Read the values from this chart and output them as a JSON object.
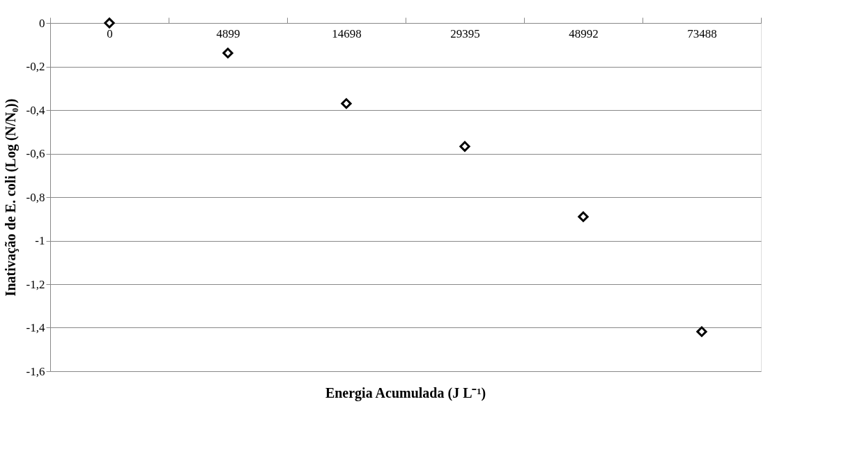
{
  "chart_data": {
    "type": "scatter",
    "xlabel": "Energia Acumulada (J L⁻¹)",
    "ylabel": "Inativação de E. coli (Log (N/N₀))",
    "categories": [
      "0",
      "4899",
      "14698",
      "29395",
      "48992",
      "73488"
    ],
    "series": [
      {
        "color": "#000000",
        "values": [
          0,
          -0.138,
          -0.37,
          -0.567,
          -0.89,
          -1.418
        ]
      }
    ],
    "ylim": [
      -1.6,
      0
    ],
    "yticks": [
      {
        "value": 0,
        "label": "0"
      },
      {
        "value": -0.2,
        "label": "-0,2"
      },
      {
        "value": -0.4,
        "label": "-0,4"
      },
      {
        "value": -0.6,
        "label": "-0,6"
      },
      {
        "value": -0.8,
        "label": "-0,8"
      },
      {
        "value": -1,
        "label": "-1"
      },
      {
        "value": -1.2,
        "label": "-1,2"
      },
      {
        "value": -1.4,
        "label": "-1,4"
      },
      {
        "value": -1.6,
        "label": "-1,6"
      }
    ],
    "grid": "y",
    "marker": "diamond"
  }
}
